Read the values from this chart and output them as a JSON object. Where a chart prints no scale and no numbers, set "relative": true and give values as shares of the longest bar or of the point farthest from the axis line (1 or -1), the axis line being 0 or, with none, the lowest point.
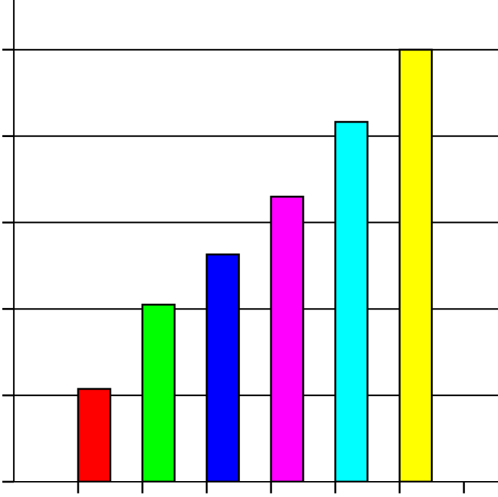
{
  "chart_data": {
    "type": "bar",
    "relative": true,
    "categories": [
      null,
      null,
      null,
      null,
      null,
      null
    ],
    "values": [
      0.215,
      0.41,
      0.526,
      0.66,
      0.833,
      1.0
    ],
    "colors": [
      "#ff0000",
      "#00ff00",
      "#0000ff",
      "#ff00ff",
      "#00ffff",
      "#ffff00"
    ],
    "grid": "y"
  }
}
